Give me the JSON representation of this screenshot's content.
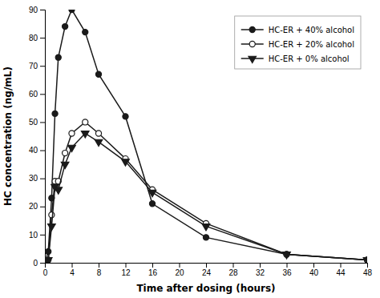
{
  "chart_data": {
    "type": "line",
    "xlabel": "Time after dosing (hours)",
    "ylabel": "HC concentration (ng/mL)",
    "x": [
      0,
      0.5,
      1,
      1.5,
      2,
      3,
      4,
      6,
      8,
      12,
      16,
      24,
      36,
      48
    ],
    "series": [
      {
        "name": "HC-ER + 40% alcohol",
        "color": "#1a1a1a",
        "marker": "circle",
        "line_style": "solid",
        "values": [
          0,
          4,
          23,
          53,
          73,
          84,
          90,
          82,
          67,
          52,
          21,
          9,
          3,
          1
        ]
      },
      {
        "name": "HC-ER + 20% alcohol",
        "color": "#1a1a1a",
        "marker": "circle-open",
        "line_style": "solid",
        "values": [
          0,
          1,
          17,
          29,
          29,
          39,
          46,
          50,
          46,
          37,
          26,
          14,
          3,
          1
        ]
      },
      {
        "name": "HC-ER + 0% alcohol",
        "color": "#1a1a1a",
        "marker": "triangle-down",
        "line_style": "solid",
        "values": [
          0,
          1,
          13,
          27,
          26,
          35,
          41,
          46,
          43,
          36,
          25,
          13,
          3,
          1
        ]
      }
    ],
    "xlim": [
      0,
      48
    ],
    "ylim": [
      0,
      90
    ],
    "xticks": [
      0,
      4,
      8,
      12,
      16,
      20,
      24,
      28,
      32,
      36,
      40,
      44,
      48
    ],
    "yticks": [
      0,
      10,
      20,
      30,
      40,
      50,
      60,
      70,
      80,
      90
    ],
    "grid": false,
    "legend": "upper right"
  }
}
